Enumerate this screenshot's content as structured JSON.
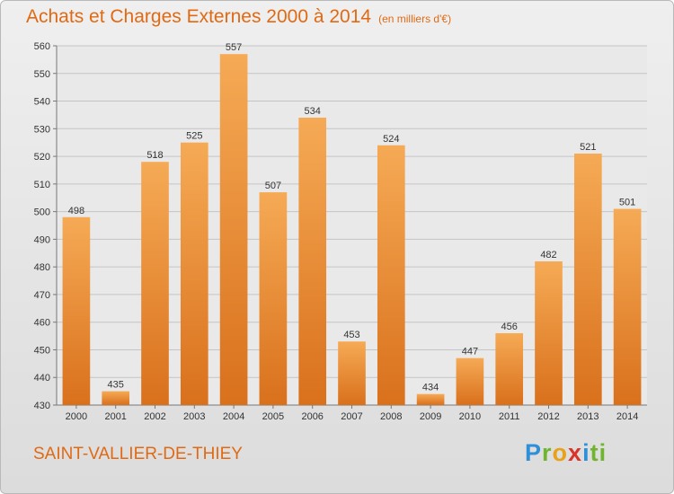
{
  "title": "Achats et Charges Externes 2000 à 2014",
  "subtitle": "(en milliers d'€)",
  "commune": "SAINT-VALLIER-DE-THIEY",
  "logo": {
    "text": "Proxiti",
    "letters": [
      "P",
      "r",
      "o",
      "x",
      "i",
      "ti"
    ]
  },
  "colors": {
    "bar_light": "#f6aa55",
    "bar_dark": "#d9701c",
    "accent": "#e06a14"
  },
  "chart_data": {
    "type": "bar",
    "title": "Achats et Charges Externes 2000 à 2014",
    "subtitle": "(en milliers d'€)",
    "categories": [
      "2000",
      "2001",
      "2002",
      "2003",
      "2004",
      "2005",
      "2006",
      "2007",
      "2008",
      "2009",
      "2010",
      "2011",
      "2012",
      "2013",
      "2014"
    ],
    "values": [
      498,
      435,
      518,
      525,
      557,
      507,
      534,
      453,
      524,
      434,
      447,
      456,
      482,
      521,
      501
    ],
    "ylim": [
      430,
      560
    ],
    "yticks": [
      430,
      440,
      450,
      460,
      470,
      480,
      490,
      500,
      510,
      520,
      530,
      540,
      550,
      560
    ],
    "grid": true,
    "xlabel": "",
    "ylabel": ""
  }
}
